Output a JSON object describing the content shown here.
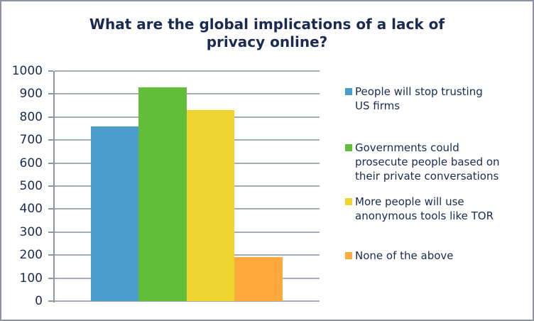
{
  "chart_data": {
    "type": "bar",
    "title": "What are the global implications of a lack of\nprivacy online?",
    "categories": [
      "People will stop trusting US firms",
      "Governments could prosecute people based on their private conversations",
      "More people will use anonymous tools like TOR",
      "None of the above"
    ],
    "values": [
      760,
      930,
      830,
      190
    ],
    "colors": [
      "#4A9CCB",
      "#62BE3A",
      "#EFD32E",
      "#FFA93D"
    ],
    "legend_lines": [
      [
        "People will stop trusting",
        "US firms"
      ],
      [
        "Governments could",
        "prosecute people based on",
        "their private conversations"
      ],
      [
        "More people will use",
        "anonymous tools like TOR"
      ],
      [
        "None of the above"
      ]
    ],
    "ylim": [
      0,
      1000
    ],
    "yticks": [
      0,
      100,
      200,
      300,
      400,
      500,
      600,
      700,
      800,
      900,
      1000
    ],
    "xlabel": "",
    "ylabel": "",
    "grid": true,
    "legend_position": "right",
    "text_color": "#1A2B52",
    "gridline_color": "#A6ACB6",
    "axis_color": "#8E96A4",
    "border_color": "#8C93A0",
    "background_color": "#FFFFFF"
  }
}
